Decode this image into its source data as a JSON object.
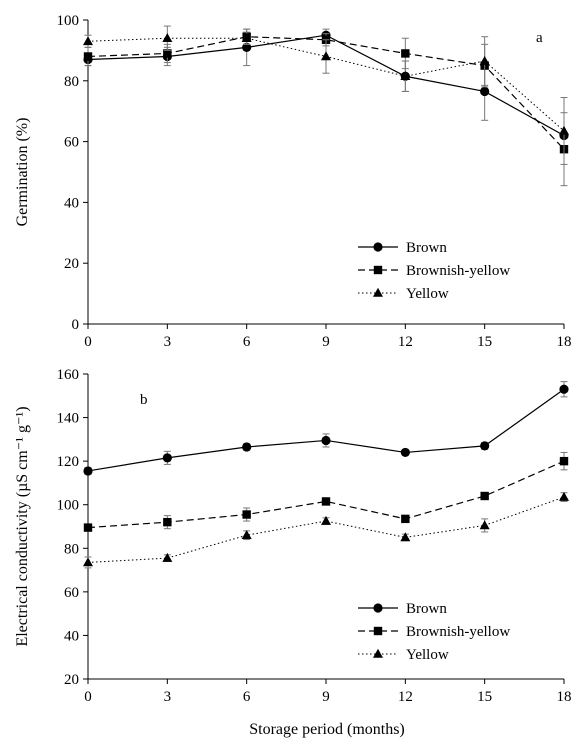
{
  "chart_data": [
    {
      "type": "line",
      "panel_label": "a",
      "xlabel": "",
      "ylabel": "Germination (%)",
      "x": [
        0,
        3,
        6,
        9,
        12,
        15,
        18
      ],
      "xlim": [
        0,
        18
      ],
      "xticks": [
        0,
        3,
        6,
        9,
        12,
        15,
        18
      ],
      "ylim": [
        0,
        100
      ],
      "yticks": [
        0,
        20,
        40,
        60,
        80,
        100
      ],
      "grid": false,
      "legend_position": "bottom-right",
      "series": [
        {
          "name": "Brown",
          "style": "solid",
          "marker": "circle",
          "values": [
            87,
            88,
            91,
            95,
            81.5,
            76.5,
            62
          ],
          "errors": [
            2,
            3,
            6,
            2,
            5,
            9.5,
            0
          ]
        },
        {
          "name": "Brownish-yellow",
          "style": "dashed",
          "marker": "square",
          "values": [
            88,
            89,
            94.5,
            93.5,
            89,
            85,
            57.5
          ],
          "errors": [
            3,
            3,
            2.5,
            2,
            5,
            7,
            12
          ]
        },
        {
          "name": "Yellow",
          "style": "dotted",
          "marker": "triangle",
          "values": [
            93,
            94,
            94,
            88,
            81.5,
            86.5,
            63.5
          ],
          "errors": [
            2,
            4,
            2,
            5.5,
            5,
            8,
            11
          ]
        }
      ]
    },
    {
      "type": "line",
      "panel_label": "b",
      "xlabel": "Storage period (months)",
      "ylabel": "Electrical conductivity (µS cm⁻¹ g⁻¹)",
      "x": [
        0,
        3,
        6,
        9,
        12,
        15,
        18
      ],
      "xlim": [
        0,
        18
      ],
      "xticks": [
        0,
        3,
        6,
        9,
        12,
        15,
        18
      ],
      "ylim": [
        20,
        160
      ],
      "yticks": [
        20,
        40,
        60,
        80,
        100,
        120,
        140,
        160
      ],
      "grid": false,
      "legend_position": "bottom-right",
      "series": [
        {
          "name": "Brown",
          "style": "solid",
          "marker": "circle",
          "values": [
            115.5,
            121.5,
            126.5,
            129.5,
            124,
            127,
            153
          ],
          "errors": [
            1.5,
            3,
            1.5,
            3,
            1,
            1.5,
            3.5
          ]
        },
        {
          "name": "Brownish-yellow",
          "style": "dashed",
          "marker": "square",
          "values": [
            89.5,
            92,
            95.5,
            101.5,
            93.5,
            104,
            120
          ],
          "errors": [
            1.5,
            3,
            3,
            1.5,
            1,
            1.5,
            4
          ]
        },
        {
          "name": "Yellow",
          "style": "dotted",
          "marker": "triangle",
          "values": [
            73.5,
            75.5,
            86,
            92.5,
            85,
            90.5,
            103.5
          ],
          "errors": [
            2.5,
            1.5,
            2,
            1.5,
            1.5,
            3,
            2
          ]
        }
      ]
    }
  ]
}
